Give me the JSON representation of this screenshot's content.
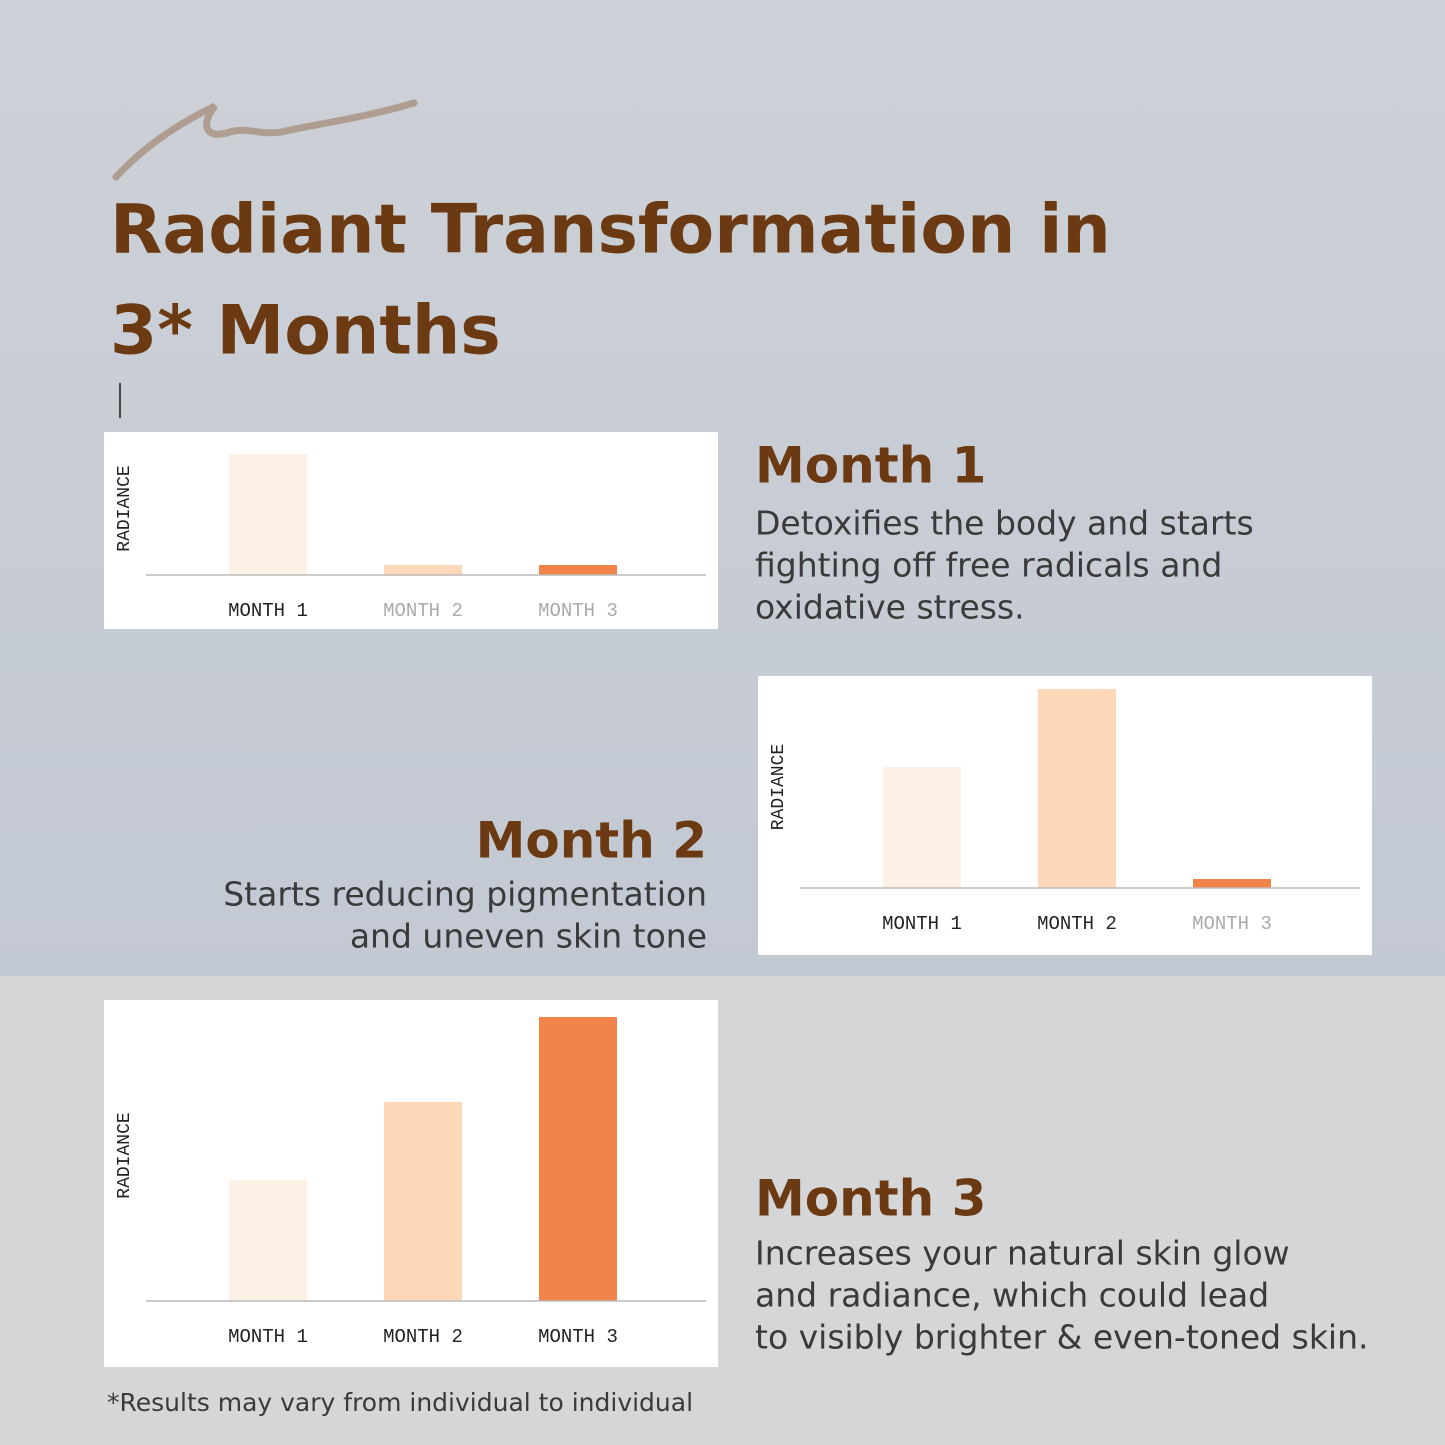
{
  "header": {
    "title": [
      "Radiant Transformation in",
      "3* Months"
    ]
  },
  "sections": [
    {
      "heading": "Month 1",
      "lines": [
        "Detoxifies the body and starts",
        "fighting off free radicals and",
        "oxidative stress."
      ]
    },
    {
      "heading": "Month 2",
      "lines": [
        "Starts reducing pigmentation",
        "and uneven skin tone"
      ]
    },
    {
      "heading": "Month 3",
      "lines": [
        "Increases your natural skin glow",
        "and radiance, which could lead",
        "to visibly brighter & even-toned skin."
      ]
    }
  ],
  "chart_data": [
    {
      "type": "bar",
      "ylabel": "RADIANCE",
      "categories": [
        "MONTH 1",
        "MONTH 2",
        "MONTH 3"
      ],
      "values": [
        121,
        10,
        10
      ],
      "colors": [
        "#fdf1e6",
        "#fdd8b8",
        "#f28449"
      ],
      "category_colors": [
        "#222222",
        "#aaaaaa",
        "#aaaaaa"
      ]
    },
    {
      "type": "bar",
      "ylabel": "RADIANCE",
      "categories": [
        "MONTH 1",
        "MONTH 2",
        "MONTH 3"
      ],
      "values": [
        121,
        199,
        9
      ],
      "colors": [
        "#fdf1e6",
        "#fdd8b8",
        "#f28449"
      ],
      "category_colors": [
        "#222222",
        "#222222",
        "#aaaaaa"
      ]
    },
    {
      "type": "bar",
      "ylabel": "RADIANCE",
      "categories": [
        "MONTH 1",
        "MONTH 2",
        "MONTH 3"
      ],
      "values": [
        121,
        199,
        284
      ],
      "colors": [
        "#fdf1e6",
        "#fdd8b8",
        "#f28449"
      ],
      "category_colors": [
        "#222222",
        "#222222",
        "#222222"
      ]
    }
  ],
  "footnote": "*Results may vary from individual to individual"
}
